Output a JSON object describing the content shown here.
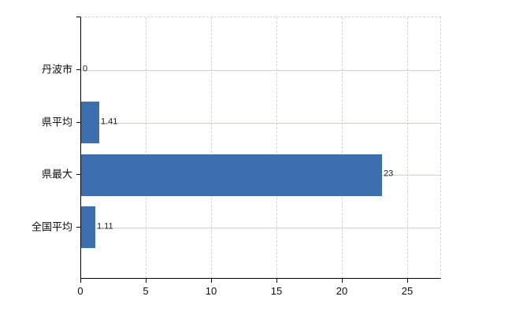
{
  "chart_data": {
    "type": "bar",
    "orientation": "horizontal",
    "title": "",
    "xlabel": "",
    "ylabel": "",
    "categories": [
      "丹波市",
      "県平均",
      "県最大",
      "全国平均"
    ],
    "values": [
      0,
      1.41,
      23,
      1.11
    ],
    "value_labels": [
      "0",
      "1.41",
      "23",
      "1.11"
    ],
    "x_ticks": [
      0,
      5,
      10,
      15,
      20,
      25
    ],
    "x_tick_labels": [
      "0",
      "5",
      "10",
      "15",
      "20",
      "25"
    ],
    "xlim": [
      0,
      27.6
    ],
    "grid": true,
    "legend": "none",
    "colors": {
      "bar": "#3d6fae",
      "axis": "#000000",
      "grid_horizontal": "#ccd1c9",
      "grid_vertical": "#d4d4d4",
      "frame_dashed": "#d9d1d9",
      "text": "#0d0d0d",
      "background": "#ffffff"
    }
  }
}
